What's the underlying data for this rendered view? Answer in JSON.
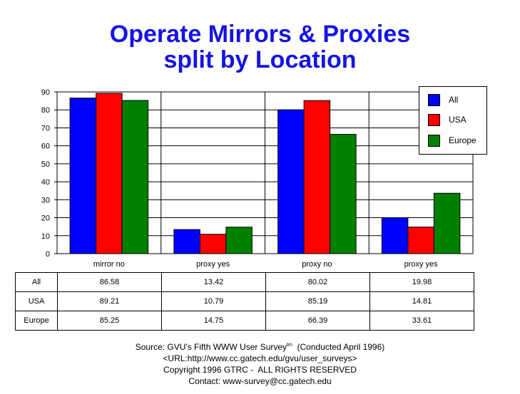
{
  "title_line1": "Operate Mirrors & Proxies",
  "title_line2": "split by Location",
  "chart_data": {
    "type": "bar",
    "categories": [
      "mirror no",
      "proxy yes",
      "proxy no",
      "proxy yes"
    ],
    "series": [
      {
        "name": "All",
        "color": "#0000ff",
        "values": [
          86.58,
          13.42,
          80.02,
          19.98
        ]
      },
      {
        "name": "USA",
        "color": "#ff0000",
        "values": [
          89.21,
          10.79,
          85.19,
          14.81
        ]
      },
      {
        "name": "Europe",
        "color": "#008000",
        "values": [
          85.25,
          14.75,
          66.39,
          33.61
        ]
      }
    ],
    "ylim": [
      0,
      90
    ],
    "yticks": [
      "0",
      "10",
      "20",
      "30",
      "40",
      "50",
      "60",
      "70",
      "80",
      "90"
    ],
    "grid": true,
    "legend_position": "top-right"
  },
  "table": {
    "rows": [
      {
        "label": "All",
        "cells": [
          "86.58",
          "13.42",
          "80.02",
          "19.98"
        ]
      },
      {
        "label": "USA",
        "cells": [
          "89.21",
          "10.79",
          "85.19",
          "14.81"
        ]
      },
      {
        "label": "Europe",
        "cells": [
          "85.25",
          "14.75",
          "66.39",
          "33.61"
        ]
      }
    ]
  },
  "footer": {
    "source_prefix": "Source: GVU's Fifth WWW User Survey",
    "tm": "tm",
    "source_suffix": "  (Conducted April 1996)",
    "url": "<URL:http://www.cc.gatech.edu/gvu/user_surveys>",
    "copyright": "Copyright 1996 GTRC -  ALL RIGHTS RESERVED",
    "contact": "Contact: www-survey@cc.gatech.edu"
  }
}
